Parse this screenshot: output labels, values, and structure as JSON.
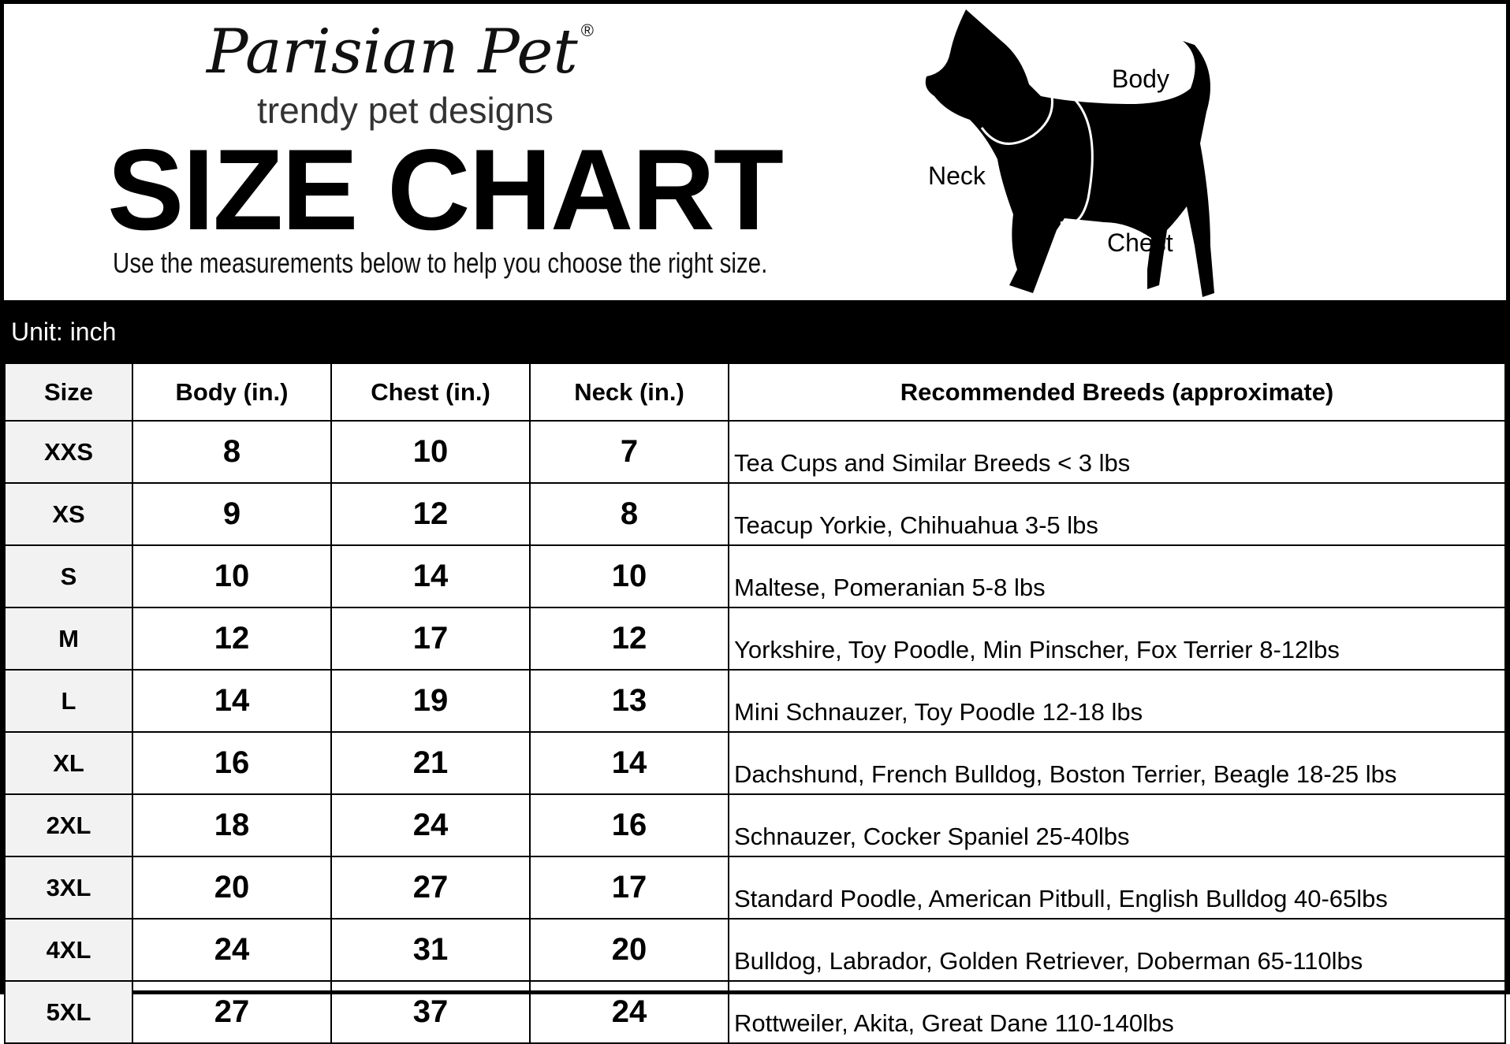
{
  "brand": {
    "logo": "Parisian Pet",
    "registered": "®",
    "tagline": "trendy pet designs"
  },
  "title": "SIZE CHART",
  "subtitle": "Use the measurements below to help you choose the right size.",
  "diagram": {
    "labels": {
      "body": "Body",
      "neck": "Neck",
      "chest": "Chest"
    },
    "icon": "dog-silhouette"
  },
  "unit_label": "Unit: inch",
  "table": {
    "headers": [
      "Size",
      "Body (in.)",
      "Chest (in.)",
      "Neck (in.)",
      "Recommended Breeds (approximate)"
    ],
    "rows": [
      [
        "XXS",
        "8",
        "10",
        "7",
        "Tea Cups and Similar Breeds < 3 lbs"
      ],
      [
        "XS",
        "9",
        "12",
        "8",
        "Teacup Yorkie, Chihuahua 3-5 lbs"
      ],
      [
        "S",
        "10",
        "14",
        "10",
        "Maltese, Pomeranian 5-8 lbs"
      ],
      [
        "M",
        "12",
        "17",
        "12",
        "Yorkshire, Toy Poodle, Min Pinscher, Fox Terrier 8-12lbs"
      ],
      [
        "L",
        "14",
        "19",
        "13",
        "Mini Schnauzer, Toy Poodle 12-18 lbs"
      ],
      [
        "XL",
        "16",
        "21",
        "14",
        "Dachshund, French Bulldog, Boston Terrier, Beagle 18-25 lbs"
      ],
      [
        "2XL",
        "18",
        "24",
        "16",
        "Schnauzer, Cocker Spaniel 25-40lbs"
      ],
      [
        "3XL",
        "20",
        "27",
        "17",
        "Standard Poodle, American Pitbull, English Bulldog 40-65lbs"
      ],
      [
        "4XL",
        "24",
        "31",
        "20",
        "Bulldog, Labrador, Golden Retriever, Doberman 65-110lbs"
      ],
      [
        "5XL",
        "27",
        "37",
        "24",
        "Rottweiler, Akita, Great Dane 110-140lbs"
      ]
    ]
  }
}
